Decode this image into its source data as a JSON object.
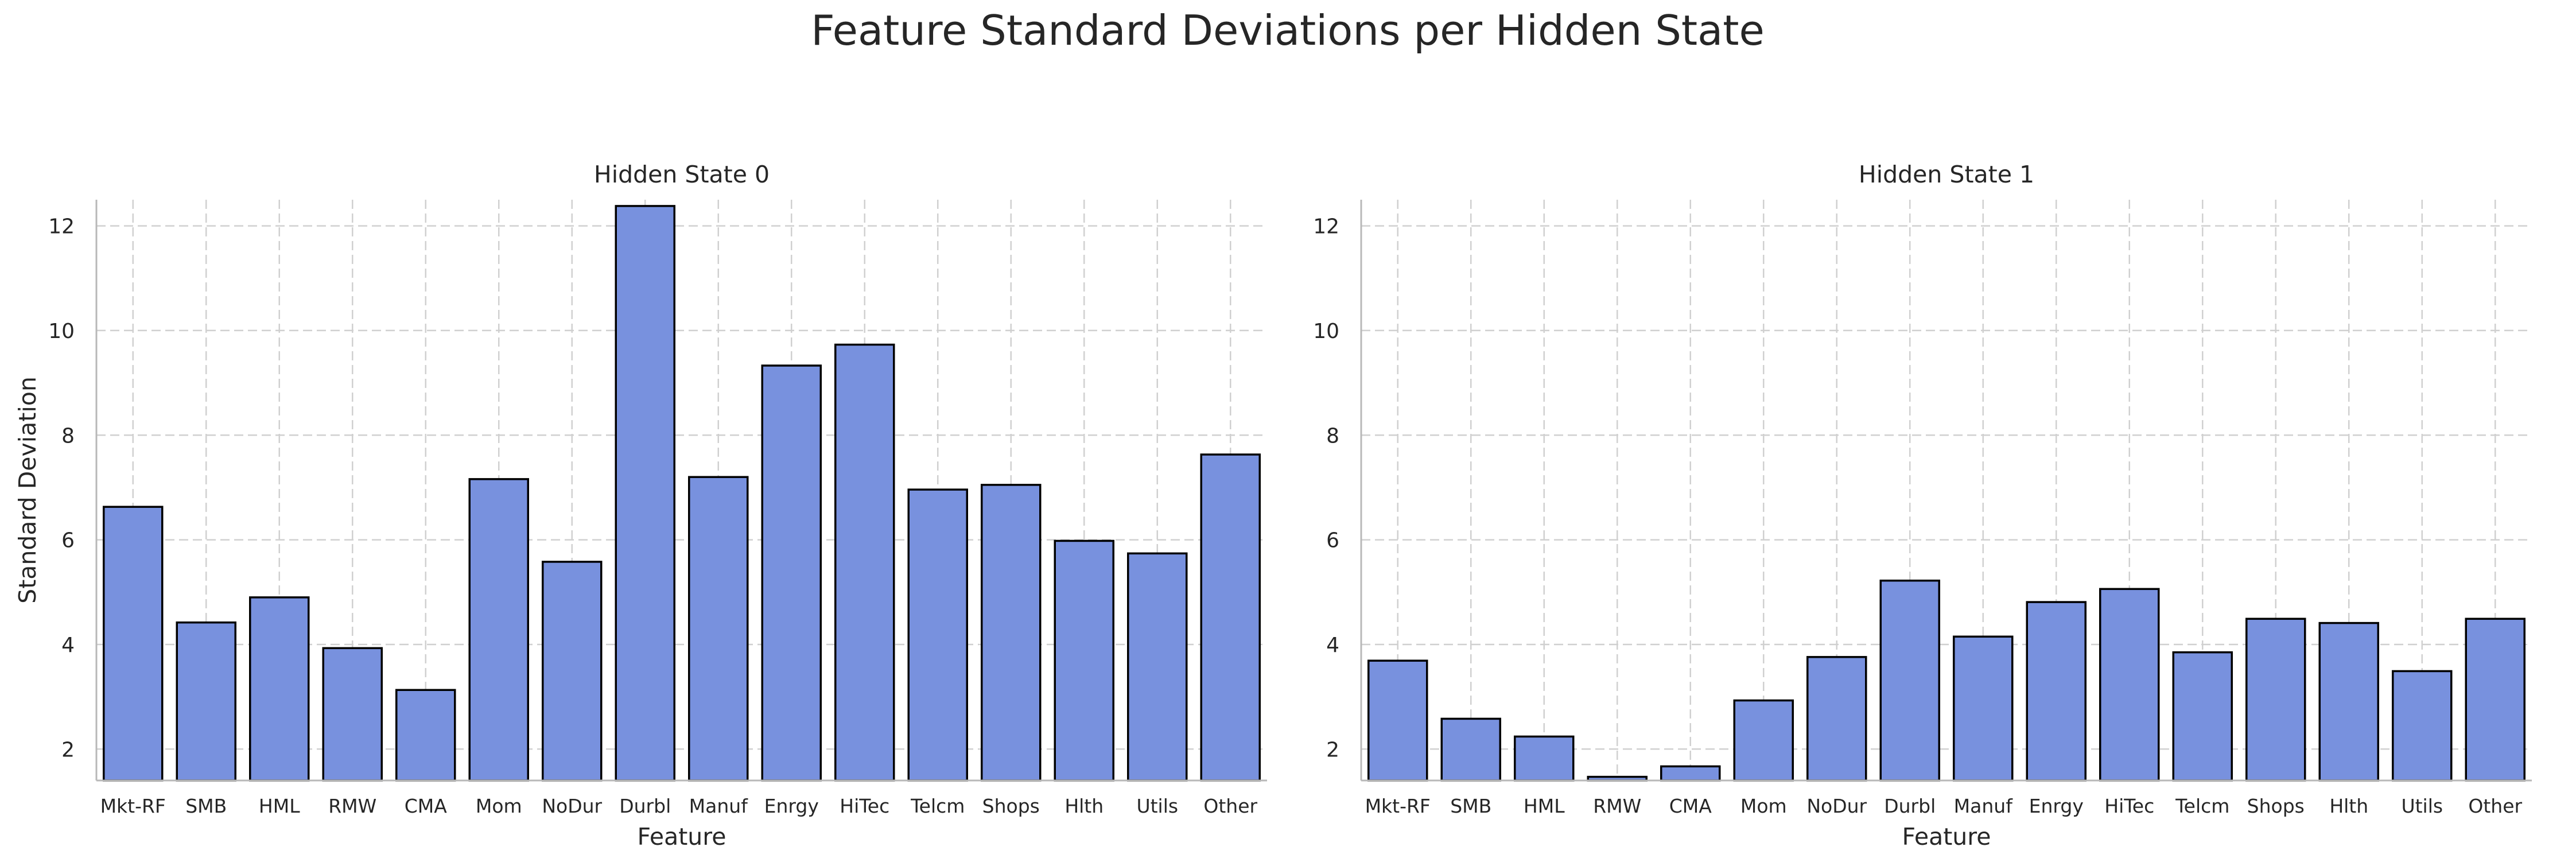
{
  "title": "Feature Standard Deviations per Hidden State",
  "colors": {
    "bar_fill": "#7891de",
    "bar_edge": "#000000",
    "grid": "#d0d0d0",
    "text": "#262626"
  },
  "chart_data": [
    {
      "type": "bar",
      "title": "Hidden State 0",
      "xlabel": "Feature",
      "ylabel": "Standard Deviation",
      "categories": [
        "Mkt-RF",
        "SMB",
        "HML",
        "RMW",
        "CMA",
        "Mom",
        "NoDur",
        "Durbl",
        "Manuf",
        "Enrgy",
        "HiTec",
        "Telcm",
        "Shops",
        "Hlth",
        "Utils",
        "Other"
      ],
      "values": [
        6.63,
        4.42,
        4.9,
        3.93,
        3.13,
        7.16,
        5.58,
        12.38,
        7.2,
        9.33,
        9.73,
        6.96,
        7.05,
        5.98,
        5.74,
        7.63
      ],
      "ylim": [
        1.4,
        12.5
      ],
      "yticks": [
        2,
        4,
        6,
        8,
        10,
        12
      ],
      "grid": true
    },
    {
      "type": "bar",
      "title": "Hidden State 1",
      "xlabel": "Feature",
      "ylabel": "",
      "categories": [
        "Mkt-RF",
        "SMB",
        "HML",
        "RMW",
        "CMA",
        "Mom",
        "NoDur",
        "Durbl",
        "Manuf",
        "Enrgy",
        "HiTec",
        "Telcm",
        "Shops",
        "Hlth",
        "Utils",
        "Other"
      ],
      "values": [
        3.69,
        2.58,
        2.24,
        1.47,
        1.67,
        2.93,
        3.76,
        5.22,
        4.15,
        4.81,
        5.06,
        3.85,
        4.49,
        4.41,
        3.49,
        4.49
      ],
      "ylim": [
        1.4,
        12.5
      ],
      "yticks": [
        2,
        4,
        6,
        8,
        10,
        12
      ],
      "grid": true
    }
  ]
}
